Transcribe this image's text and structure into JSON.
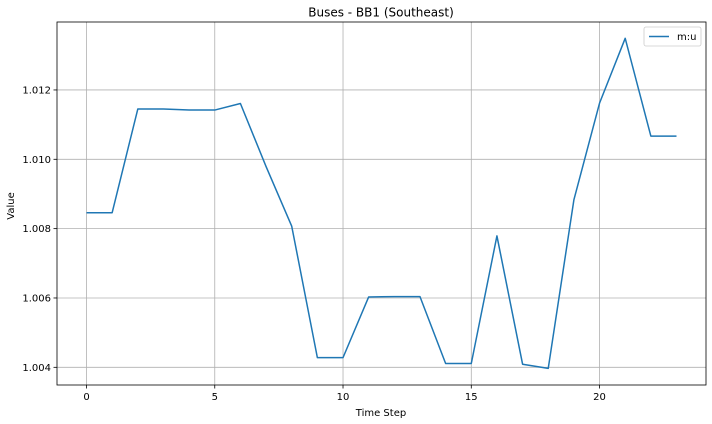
{
  "chart_data": {
    "type": "line",
    "title": "Buses - BB1 (Southeast)",
    "xlabel": "Time Step",
    "ylabel": "Value",
    "xlim": [
      -1.15,
      24.15
    ],
    "ylim": [
      1.00349,
      1.01396
    ],
    "xticks": [
      0,
      5,
      10,
      15,
      20
    ],
    "yticks": [
      1.004,
      1.006,
      1.008,
      1.01,
      1.012
    ],
    "grid": true,
    "legend_position": "top-right",
    "series": [
      {
        "name": "m:u",
        "color": "#1f77b4",
        "x": [
          0,
          1,
          2,
          3,
          4,
          5,
          6,
          7,
          8,
          9,
          10,
          11,
          12,
          13,
          14,
          15,
          16,
          17,
          18,
          19,
          20,
          21,
          22,
          23
        ],
        "values": [
          1.00846,
          1.00846,
          1.01145,
          1.01145,
          1.01142,
          1.01142,
          1.01161,
          1.00979,
          1.00807,
          1.00428,
          1.00428,
          1.00603,
          1.00604,
          1.00604,
          1.00411,
          1.00411,
          1.00779,
          1.00409,
          1.00397,
          1.00883,
          1.01162,
          1.01349,
          1.01067,
          1.01067
        ]
      }
    ]
  }
}
